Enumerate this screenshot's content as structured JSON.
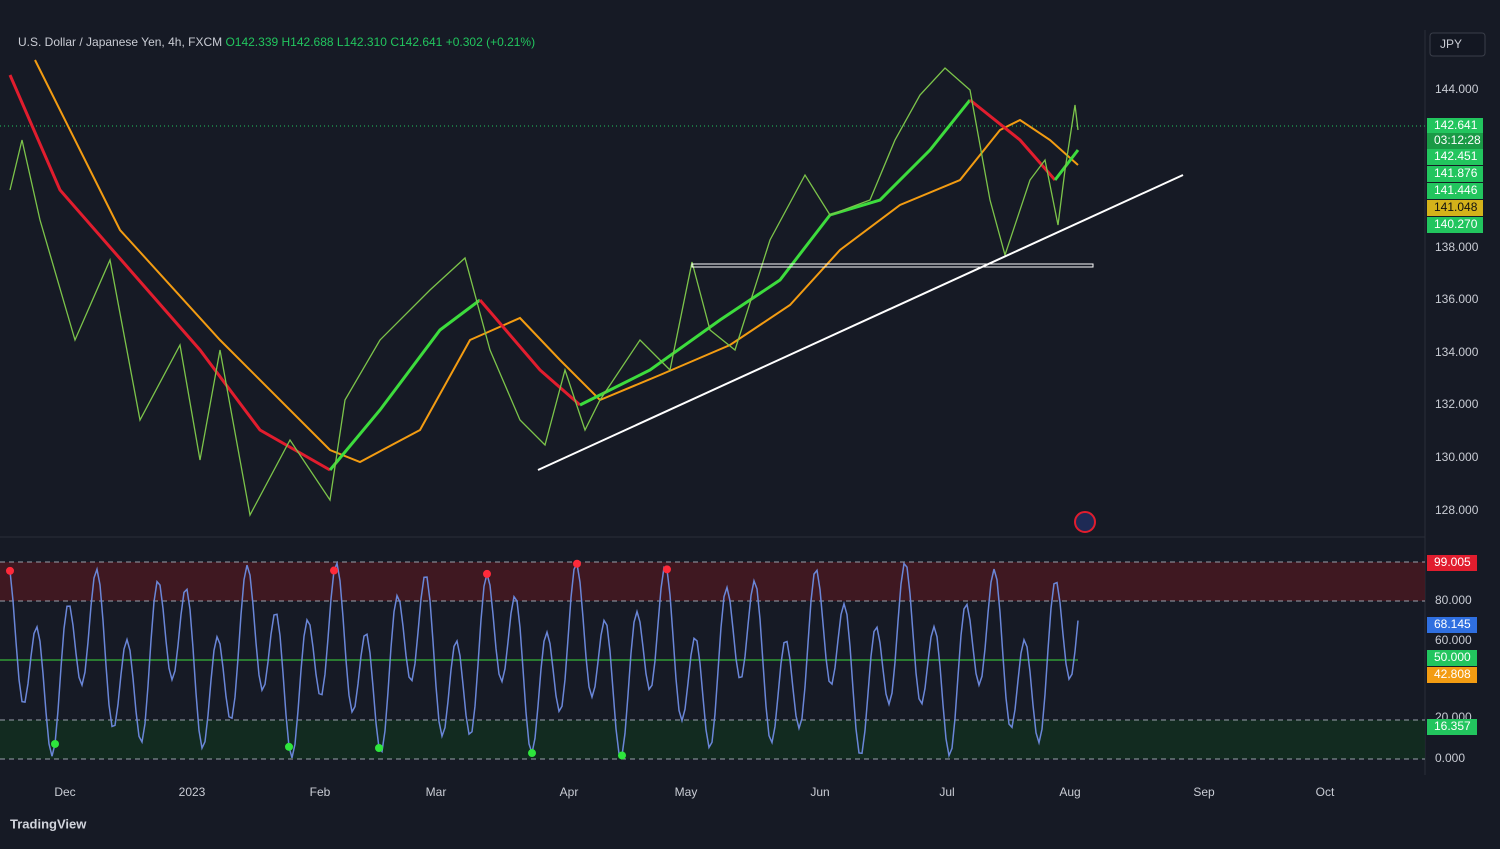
{
  "header": {
    "symbol": "U.S. Dollar / Japanese Yen, 4h, FXCM",
    "open": "O142.339",
    "high": "H142.688",
    "low": "L142.310",
    "close": "C142.641",
    "change": "+0.302 (+0.21%)"
  },
  "currency_button": "JPY",
  "price_axis": [
    "144.000",
    "138.000",
    "136.000",
    "134.000",
    "132.000",
    "130.000",
    "128.000"
  ],
  "price_badges": [
    {
      "text": "142.641",
      "color": "#22c55e"
    },
    {
      "text": "03:12:28",
      "color": "#1a9a46"
    },
    {
      "text": "142.451",
      "color": "#22c55e"
    },
    {
      "text": "141.876",
      "color": "#22c55e"
    },
    {
      "text": "141.446",
      "color": "#22c55e"
    },
    {
      "text": "141.048",
      "color": "#d4b21a"
    },
    {
      "text": "140.270",
      "color": "#22c55e"
    }
  ],
  "oscillator_axis": [
    "80.000",
    "60.000",
    "20.000",
    "0.000"
  ],
  "oscillator_badges": [
    {
      "text": "99.005",
      "color": "#e11d2e"
    },
    {
      "text": "68.145",
      "color": "#2f6fe0"
    },
    {
      "text": "50.000",
      "color": "#22c55e"
    },
    {
      "text": "42.808",
      "color": "#f39c12"
    },
    {
      "text": "16.357",
      "color": "#22c55e"
    }
  ],
  "time_axis": [
    "Dec",
    "2023",
    "Feb",
    "Mar",
    "Apr",
    "May",
    "Jun",
    "Jul",
    "Aug",
    "Sep",
    "Oct"
  ],
  "brand": "TradingView"
}
